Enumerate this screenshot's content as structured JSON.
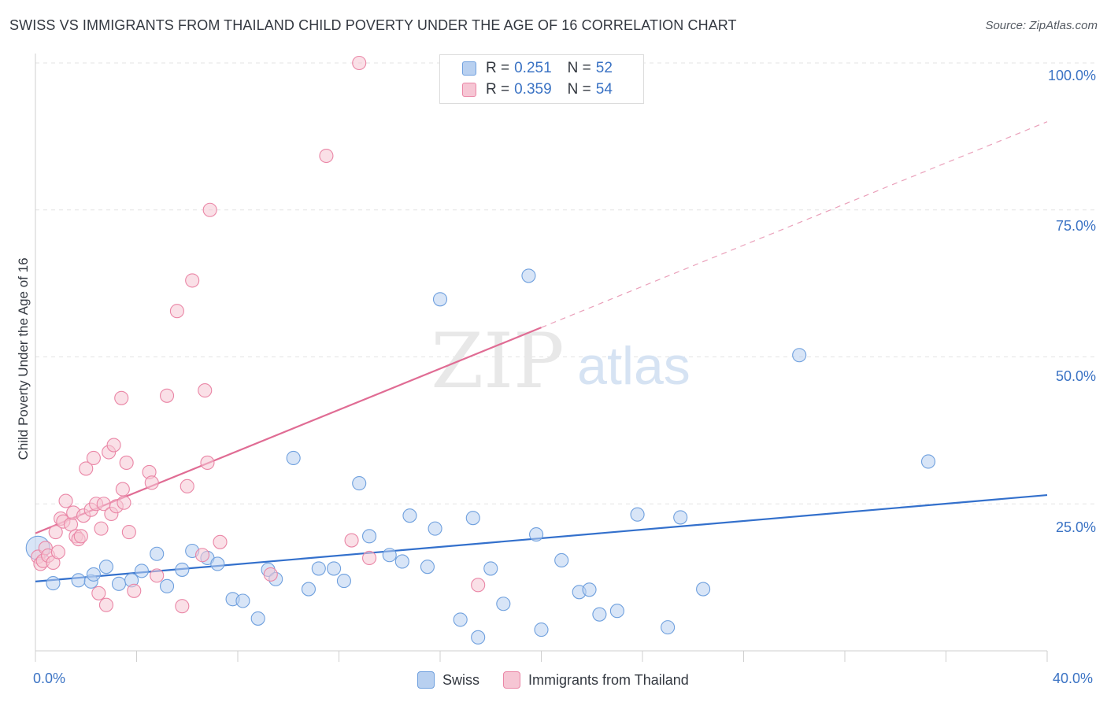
{
  "chart_data": {
    "type": "scatter",
    "title": "SWISS VS IMMIGRANTS FROM THAILAND CHILD POVERTY UNDER THE AGE OF 16 CORRELATION CHART",
    "source": "Source: ZipAtlas.com",
    "xlabel": "",
    "ylabel": "Child Poverty Under the Age of 16",
    "xlim": [
      0,
      40
    ],
    "ylim": [
      0,
      100
    ],
    "x_tick_labels": {
      "min": "0.0%",
      "max": "40.0%"
    },
    "y_ticks": [
      {
        "value": 25,
        "label": "25.0%"
      },
      {
        "value": 50,
        "label": "50.0%"
      },
      {
        "value": 75,
        "label": "75.0%"
      },
      {
        "value": 100,
        "label": "100.0%"
      }
    ],
    "grid": true,
    "watermark": {
      "zip": "ZIP",
      "atlas": "atlas"
    },
    "legend": [
      {
        "r_label": "R =",
        "r_value": "0.251",
        "n_label": "N =",
        "n_value": "52"
      },
      {
        "r_label": "R =",
        "r_value": "0.359",
        "n_label": "N =",
        "n_value": "54"
      }
    ],
    "series": [
      {
        "name": "Swiss",
        "color": "#6fa0de",
        "fill": "#b8d0f0",
        "trend": {
          "x0": 0,
          "y0": 11.8,
          "x1": 40,
          "y1": 26.5,
          "solid_until": 40
        },
        "points": [
          [
            0.1,
            17.5
          ],
          [
            0.7,
            11.5
          ],
          [
            1.7,
            12.0
          ],
          [
            2.2,
            11.8
          ],
          [
            2.3,
            13.0
          ],
          [
            2.8,
            14.3
          ],
          [
            3.3,
            11.4
          ],
          [
            3.8,
            12.0
          ],
          [
            4.2,
            13.6
          ],
          [
            4.8,
            16.5
          ],
          [
            5.2,
            11.0
          ],
          [
            5.8,
            13.8
          ],
          [
            6.2,
            17.0
          ],
          [
            6.8,
            15.8
          ],
          [
            7.2,
            14.8
          ],
          [
            7.8,
            8.8
          ],
          [
            8.2,
            8.5
          ],
          [
            8.8,
            5.5
          ],
          [
            9.2,
            13.8
          ],
          [
            9.5,
            12.2
          ],
          [
            10.2,
            32.8
          ],
          [
            10.8,
            10.5
          ],
          [
            11.2,
            14.0
          ],
          [
            11.8,
            14.0
          ],
          [
            12.2,
            11.9
          ],
          [
            12.8,
            28.5
          ],
          [
            13.2,
            19.5
          ],
          [
            14.0,
            16.3
          ],
          [
            14.5,
            15.2
          ],
          [
            14.8,
            23.0
          ],
          [
            15.5,
            14.3
          ],
          [
            15.8,
            20.8
          ],
          [
            16.0,
            59.8
          ],
          [
            16.8,
            5.3
          ],
          [
            17.3,
            22.6
          ],
          [
            17.5,
            2.3
          ],
          [
            18.0,
            14.0
          ],
          [
            18.5,
            8.0
          ],
          [
            19.5,
            63.8
          ],
          [
            19.8,
            19.8
          ],
          [
            20.0,
            3.6
          ],
          [
            20.8,
            15.4
          ],
          [
            21.5,
            10.0
          ],
          [
            21.9,
            10.4
          ],
          [
            22.3,
            6.2
          ],
          [
            23.0,
            6.8
          ],
          [
            23.8,
            23.2
          ],
          [
            25.0,
            4.0
          ],
          [
            25.5,
            22.7
          ],
          [
            26.4,
            10.5
          ],
          [
            30.2,
            50.3
          ],
          [
            35.3,
            32.2
          ]
        ]
      },
      {
        "name": "Immigrants from Thailand",
        "color": "#ea86a6",
        "fill": "#f6c6d4",
        "trend": {
          "x0": 0,
          "y0": 20.0,
          "x1": 40,
          "y1": 90.0,
          "solid_until": 20
        },
        "points": [
          [
            0.1,
            16.0
          ],
          [
            0.2,
            14.8
          ],
          [
            0.3,
            15.3
          ],
          [
            0.4,
            17.5
          ],
          [
            0.5,
            16.2
          ],
          [
            0.7,
            15.0
          ],
          [
            0.8,
            20.2
          ],
          [
            0.9,
            16.8
          ],
          [
            1.0,
            22.5
          ],
          [
            1.1,
            22.0
          ],
          [
            1.2,
            25.5
          ],
          [
            1.4,
            21.5
          ],
          [
            1.5,
            23.5
          ],
          [
            1.6,
            19.5
          ],
          [
            1.7,
            19.0
          ],
          [
            1.8,
            19.5
          ],
          [
            1.9,
            23.0
          ],
          [
            2.0,
            31.0
          ],
          [
            2.2,
            24.0
          ],
          [
            2.3,
            32.8
          ],
          [
            2.4,
            25.0
          ],
          [
            2.5,
            9.8
          ],
          [
            2.6,
            20.8
          ],
          [
            2.7,
            25.0
          ],
          [
            2.8,
            7.8
          ],
          [
            2.9,
            33.8
          ],
          [
            3.0,
            23.3
          ],
          [
            3.1,
            35.0
          ],
          [
            3.2,
            24.6
          ],
          [
            3.4,
            43.0
          ],
          [
            3.45,
            27.5
          ],
          [
            3.5,
            25.2
          ],
          [
            3.6,
            32.0
          ],
          [
            3.7,
            20.2
          ],
          [
            3.9,
            10.2
          ],
          [
            4.5,
            30.4
          ],
          [
            4.6,
            28.6
          ],
          [
            4.8,
            12.8
          ],
          [
            5.2,
            43.4
          ],
          [
            5.6,
            57.8
          ],
          [
            5.8,
            7.6
          ],
          [
            6.0,
            28.0
          ],
          [
            6.2,
            63.0
          ],
          [
            6.6,
            16.3
          ],
          [
            6.7,
            44.3
          ],
          [
            6.8,
            32.0
          ],
          [
            6.9,
            75.0
          ],
          [
            7.3,
            18.5
          ],
          [
            9.3,
            13.0
          ],
          [
            11.5,
            84.2
          ],
          [
            12.5,
            18.8
          ],
          [
            12.8,
            100.0
          ],
          [
            13.2,
            15.8
          ],
          [
            17.5,
            11.2
          ]
        ]
      }
    ]
  }
}
